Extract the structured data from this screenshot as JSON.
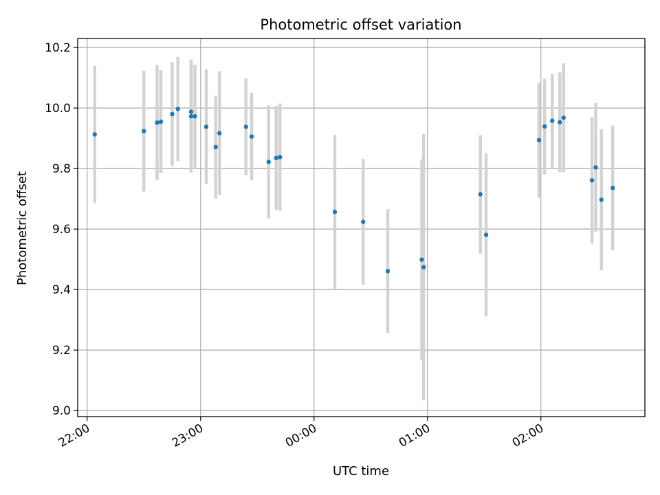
{
  "chart_data": {
    "type": "scatter",
    "title": "Photometric offset variation",
    "xlabel": "UTC time",
    "ylabel": "Photometric offset",
    "x_ticks": [
      "22:00",
      "23:00",
      "00:00",
      "01:00",
      "02:00"
    ],
    "y_ticks": [
      "9.0",
      "9.2",
      "9.4",
      "9.6",
      "9.8",
      "10.0",
      "10.2"
    ],
    "xlim": [
      "21:55",
      "02:55"
    ],
    "ylim": [
      8.98,
      10.23
    ],
    "grid": true,
    "colors": {
      "points": "#1f77b4",
      "errorbars": "#d3d3d3",
      "grid": "#b0b0b0"
    },
    "series": [
      {
        "points": [
          {
            "x": "22:04",
            "y": 9.913,
            "err": 0.227
          },
          {
            "x": "22:30",
            "y": 9.924,
            "err": 0.2
          },
          {
            "x": "22:37",
            "y": 9.952,
            "err": 0.19
          },
          {
            "x": "22:39",
            "y": 9.955,
            "err": 0.17
          },
          {
            "x": "22:45",
            "y": 9.98,
            "err": 0.172
          },
          {
            "x": "22:48",
            "y": 9.997,
            "err": 0.172
          },
          {
            "x": "22:55",
            "y": 9.988,
            "err": 0.172
          },
          {
            "x": "22:55",
            "y": 9.973,
            "err": 0.187
          },
          {
            "x": "22:57",
            "y": 9.973,
            "err": 0.17
          },
          {
            "x": "23:03",
            "y": 9.938,
            "err": 0.19
          },
          {
            "x": "23:08",
            "y": 9.871,
            "err": 0.17
          },
          {
            "x": "23:10",
            "y": 9.917,
            "err": 0.205
          },
          {
            "x": "23:24",
            "y": 9.938,
            "err": 0.16
          },
          {
            "x": "23:27",
            "y": 9.906,
            "err": 0.145
          },
          {
            "x": "23:36",
            "y": 9.822,
            "err": 0.187
          },
          {
            "x": "23:40",
            "y": 9.835,
            "err": 0.172
          },
          {
            "x": "23:42",
            "y": 9.838,
            "err": 0.177
          },
          {
            "x": "00:11",
            "y": 9.657,
            "err": 0.254
          },
          {
            "x": "00:26",
            "y": 9.624,
            "err": 0.208
          },
          {
            "x": "00:39",
            "y": 9.461,
            "err": 0.205
          },
          {
            "x": "00:57",
            "y": 9.499,
            "err": 0.332
          },
          {
            "x": "00:58",
            "y": 9.474,
            "err": 0.44
          },
          {
            "x": "01:28",
            "y": 9.715,
            "err": 0.196
          },
          {
            "x": "01:31",
            "y": 9.581,
            "err": 0.27
          },
          {
            "x": "01:59",
            "y": 9.894,
            "err": 0.19
          },
          {
            "x": "02:02",
            "y": 9.939,
            "err": 0.158
          },
          {
            "x": "02:06",
            "y": 9.958,
            "err": 0.155
          },
          {
            "x": "02:10",
            "y": 9.953,
            "err": 0.165
          },
          {
            "x": "02:12",
            "y": 9.968,
            "err": 0.18
          },
          {
            "x": "02:27",
            "y": 9.761,
            "err": 0.209
          },
          {
            "x": "02:29",
            "y": 9.804,
            "err": 0.213
          },
          {
            "x": "02:32",
            "y": 9.697,
            "err": 0.233
          },
          {
            "x": "02:38",
            "y": 9.736,
            "err": 0.206
          }
        ]
      }
    ]
  }
}
